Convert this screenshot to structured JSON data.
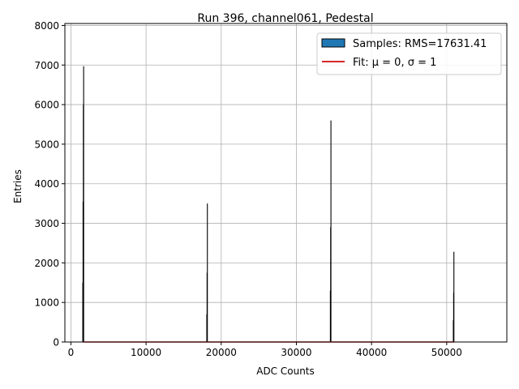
{
  "chart_data": {
    "type": "bar",
    "title": "Run 396, channel061, Pedestal",
    "xlabel": "ADC Counts",
    "ylabel": "Entries",
    "xlim": [
      -800,
      58000
    ],
    "ylim": [
      0,
      8050
    ],
    "xticks": [
      0,
      10000,
      20000,
      30000,
      40000,
      50000
    ],
    "yticks": [
      0,
      1000,
      2000,
      3000,
      4000,
      5000,
      6000,
      7000,
      8000
    ],
    "grid": true,
    "legend_position": "top-right",
    "series": [
      {
        "name": "Samples: RMS=17631.41",
        "kind": "histogram",
        "color": "#1f77b4",
        "bins": [
          {
            "x": 1640,
            "values": [
              1500,
              3550,
              6000,
              6970
            ]
          },
          {
            "x": 18120,
            "values": [
              700,
              1750,
              3500
            ]
          },
          {
            "x": 34560,
            "values": [
              1300,
              2900,
              5600
            ]
          },
          {
            "x": 50920,
            "values": [
              550,
              1250,
              2280
            ]
          }
        ]
      },
      {
        "name": "Fit: μ = 0, σ = 1",
        "kind": "line",
        "color": "#d62728",
        "points": [
          [
            1640,
            0
          ],
          [
            51000,
            0
          ]
        ]
      }
    ]
  }
}
